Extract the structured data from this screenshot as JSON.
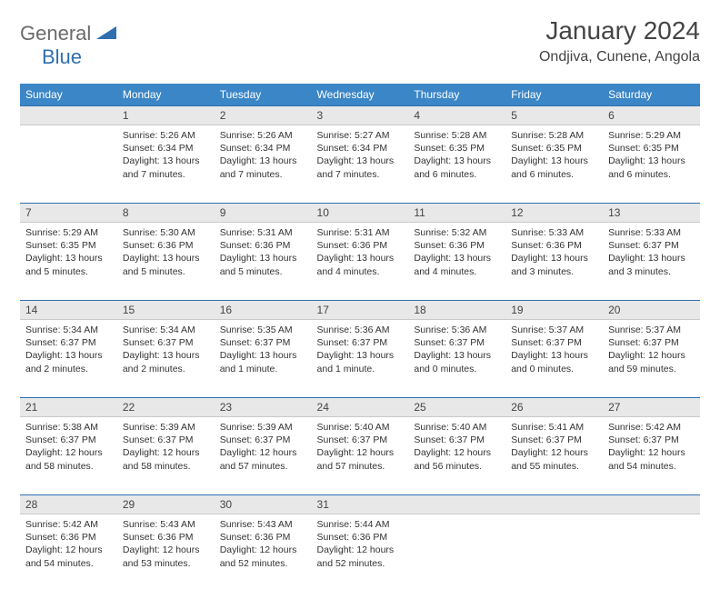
{
  "logo": {
    "part1": "General",
    "part2": "Blue"
  },
  "title": "January 2024",
  "location": "Ondjiva, Cunene, Angola",
  "colors": {
    "header_bg": "#3b86c7",
    "header_text": "#ffffff",
    "divider": "#2f6fb0",
    "daynum_bg": "#e8e8e8",
    "text": "#333333",
    "logo_gray": "#6a6a6a",
    "logo_blue": "#2f6fb0"
  },
  "dayNames": [
    "Sunday",
    "Monday",
    "Tuesday",
    "Wednesday",
    "Thursday",
    "Friday",
    "Saturday"
  ],
  "weeks": [
    [
      {
        "num": "",
        "sunrise": "",
        "sunset": "",
        "daylight": ""
      },
      {
        "num": "1",
        "sunrise": "Sunrise: 5:26 AM",
        "sunset": "Sunset: 6:34 PM",
        "daylight": "Daylight: 13 hours and 7 minutes."
      },
      {
        "num": "2",
        "sunrise": "Sunrise: 5:26 AM",
        "sunset": "Sunset: 6:34 PM",
        "daylight": "Daylight: 13 hours and 7 minutes."
      },
      {
        "num": "3",
        "sunrise": "Sunrise: 5:27 AM",
        "sunset": "Sunset: 6:34 PM",
        "daylight": "Daylight: 13 hours and 7 minutes."
      },
      {
        "num": "4",
        "sunrise": "Sunrise: 5:28 AM",
        "sunset": "Sunset: 6:35 PM",
        "daylight": "Daylight: 13 hours and 6 minutes."
      },
      {
        "num": "5",
        "sunrise": "Sunrise: 5:28 AM",
        "sunset": "Sunset: 6:35 PM",
        "daylight": "Daylight: 13 hours and 6 minutes."
      },
      {
        "num": "6",
        "sunrise": "Sunrise: 5:29 AM",
        "sunset": "Sunset: 6:35 PM",
        "daylight": "Daylight: 13 hours and 6 minutes."
      }
    ],
    [
      {
        "num": "7",
        "sunrise": "Sunrise: 5:29 AM",
        "sunset": "Sunset: 6:35 PM",
        "daylight": "Daylight: 13 hours and 5 minutes."
      },
      {
        "num": "8",
        "sunrise": "Sunrise: 5:30 AM",
        "sunset": "Sunset: 6:36 PM",
        "daylight": "Daylight: 13 hours and 5 minutes."
      },
      {
        "num": "9",
        "sunrise": "Sunrise: 5:31 AM",
        "sunset": "Sunset: 6:36 PM",
        "daylight": "Daylight: 13 hours and 5 minutes."
      },
      {
        "num": "10",
        "sunrise": "Sunrise: 5:31 AM",
        "sunset": "Sunset: 6:36 PM",
        "daylight": "Daylight: 13 hours and 4 minutes."
      },
      {
        "num": "11",
        "sunrise": "Sunrise: 5:32 AM",
        "sunset": "Sunset: 6:36 PM",
        "daylight": "Daylight: 13 hours and 4 minutes."
      },
      {
        "num": "12",
        "sunrise": "Sunrise: 5:33 AM",
        "sunset": "Sunset: 6:36 PM",
        "daylight": "Daylight: 13 hours and 3 minutes."
      },
      {
        "num": "13",
        "sunrise": "Sunrise: 5:33 AM",
        "sunset": "Sunset: 6:37 PM",
        "daylight": "Daylight: 13 hours and 3 minutes."
      }
    ],
    [
      {
        "num": "14",
        "sunrise": "Sunrise: 5:34 AM",
        "sunset": "Sunset: 6:37 PM",
        "daylight": "Daylight: 13 hours and 2 minutes."
      },
      {
        "num": "15",
        "sunrise": "Sunrise: 5:34 AM",
        "sunset": "Sunset: 6:37 PM",
        "daylight": "Daylight: 13 hours and 2 minutes."
      },
      {
        "num": "16",
        "sunrise": "Sunrise: 5:35 AM",
        "sunset": "Sunset: 6:37 PM",
        "daylight": "Daylight: 13 hours and 1 minute."
      },
      {
        "num": "17",
        "sunrise": "Sunrise: 5:36 AM",
        "sunset": "Sunset: 6:37 PM",
        "daylight": "Daylight: 13 hours and 1 minute."
      },
      {
        "num": "18",
        "sunrise": "Sunrise: 5:36 AM",
        "sunset": "Sunset: 6:37 PM",
        "daylight": "Daylight: 13 hours and 0 minutes."
      },
      {
        "num": "19",
        "sunrise": "Sunrise: 5:37 AM",
        "sunset": "Sunset: 6:37 PM",
        "daylight": "Daylight: 13 hours and 0 minutes."
      },
      {
        "num": "20",
        "sunrise": "Sunrise: 5:37 AM",
        "sunset": "Sunset: 6:37 PM",
        "daylight": "Daylight: 12 hours and 59 minutes."
      }
    ],
    [
      {
        "num": "21",
        "sunrise": "Sunrise: 5:38 AM",
        "sunset": "Sunset: 6:37 PM",
        "daylight": "Daylight: 12 hours and 58 minutes."
      },
      {
        "num": "22",
        "sunrise": "Sunrise: 5:39 AM",
        "sunset": "Sunset: 6:37 PM",
        "daylight": "Daylight: 12 hours and 58 minutes."
      },
      {
        "num": "23",
        "sunrise": "Sunrise: 5:39 AM",
        "sunset": "Sunset: 6:37 PM",
        "daylight": "Daylight: 12 hours and 57 minutes."
      },
      {
        "num": "24",
        "sunrise": "Sunrise: 5:40 AM",
        "sunset": "Sunset: 6:37 PM",
        "daylight": "Daylight: 12 hours and 57 minutes."
      },
      {
        "num": "25",
        "sunrise": "Sunrise: 5:40 AM",
        "sunset": "Sunset: 6:37 PM",
        "daylight": "Daylight: 12 hours and 56 minutes."
      },
      {
        "num": "26",
        "sunrise": "Sunrise: 5:41 AM",
        "sunset": "Sunset: 6:37 PM",
        "daylight": "Daylight: 12 hours and 55 minutes."
      },
      {
        "num": "27",
        "sunrise": "Sunrise: 5:42 AM",
        "sunset": "Sunset: 6:37 PM",
        "daylight": "Daylight: 12 hours and 54 minutes."
      }
    ],
    [
      {
        "num": "28",
        "sunrise": "Sunrise: 5:42 AM",
        "sunset": "Sunset: 6:36 PM",
        "daylight": "Daylight: 12 hours and 54 minutes."
      },
      {
        "num": "29",
        "sunrise": "Sunrise: 5:43 AM",
        "sunset": "Sunset: 6:36 PM",
        "daylight": "Daylight: 12 hours and 53 minutes."
      },
      {
        "num": "30",
        "sunrise": "Sunrise: 5:43 AM",
        "sunset": "Sunset: 6:36 PM",
        "daylight": "Daylight: 12 hours and 52 minutes."
      },
      {
        "num": "31",
        "sunrise": "Sunrise: 5:44 AM",
        "sunset": "Sunset: 6:36 PM",
        "daylight": "Daylight: 12 hours and 52 minutes."
      },
      {
        "num": "",
        "sunrise": "",
        "sunset": "",
        "daylight": ""
      },
      {
        "num": "",
        "sunrise": "",
        "sunset": "",
        "daylight": ""
      },
      {
        "num": "",
        "sunrise": "",
        "sunset": "",
        "daylight": ""
      }
    ]
  ]
}
